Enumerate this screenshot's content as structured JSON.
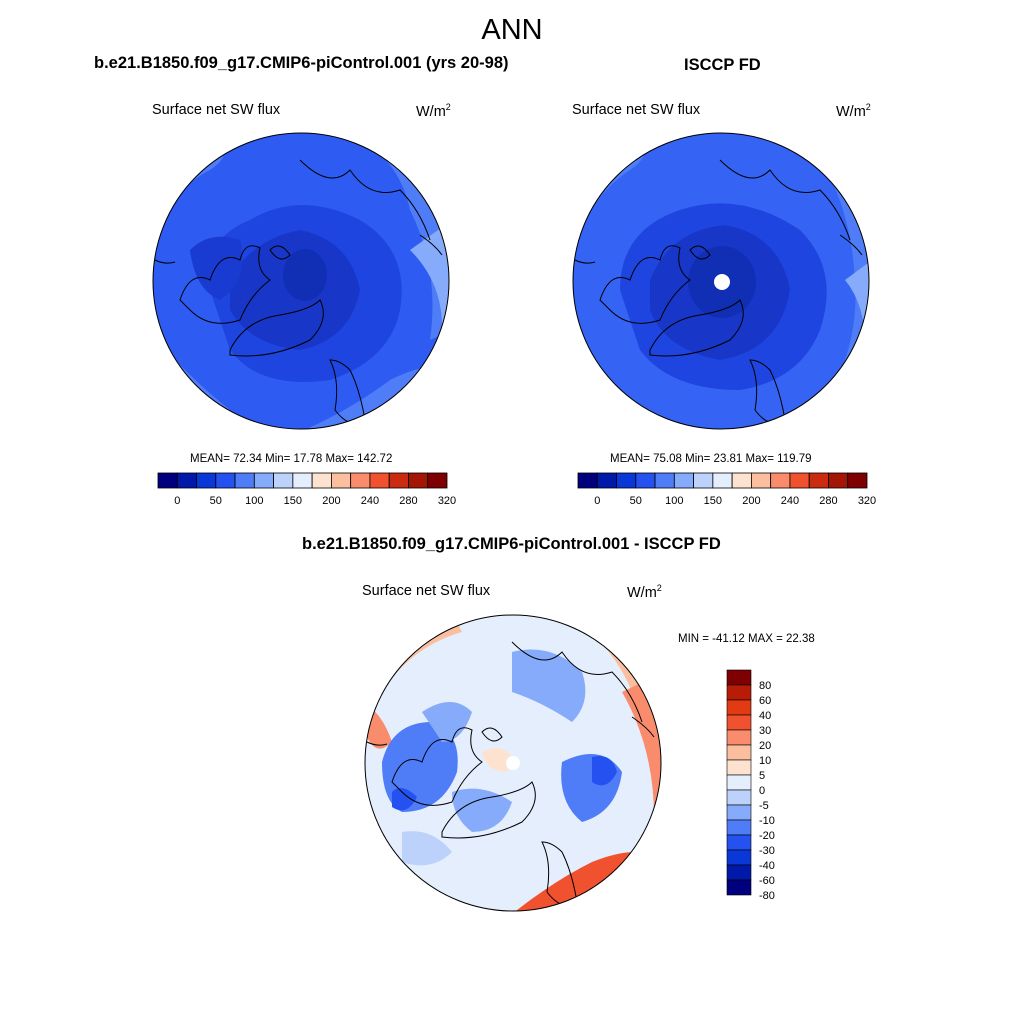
{
  "title": "ANN",
  "colors": {
    "abs_scale": [
      "#00007f",
      "#0019a8",
      "#0a37d8",
      "#2451f0",
      "#4f7cf7",
      "#86abfa",
      "#bcd2fb",
      "#e4eefc",
      "#fde3cf",
      "#fbbfa0",
      "#f88c6c",
      "#f0512e",
      "#cb2b0e",
      "#a31505",
      "#7f0000"
    ],
    "diff_scale": [
      "#00007f",
      "#0019a8",
      "#0a37d8",
      "#2451f0",
      "#4f7cf7",
      "#86abfa",
      "#bcd2fb",
      "#e4eefc",
      "#fde3cf",
      "#fbbfa0",
      "#f88c6c",
      "#f0512e",
      "#e23a12",
      "#b81c06",
      "#7f0000"
    ],
    "coastline": "#000000"
  },
  "panels": {
    "model": {
      "title": "b.e21.B1850.f09_g17.CMIP6-piControl.001 (yrs 20-98)",
      "variable": "Surface net SW flux",
      "units": "W/m",
      "units_exp": "2",
      "stats": "MEAN=  72.34  Min=  17.78  Max= 142.72"
    },
    "obs": {
      "title": "ISCCP FD",
      "variable": "Surface net SW flux",
      "units": "W/m",
      "units_exp": "2",
      "stats": "MEAN=  75.08  Min=  23.81  Max= 119.79"
    },
    "diff": {
      "title": "b.e21.B1850.f09_g17.CMIP6-piControl.001 - ISCCP FD",
      "variable": "Surface net SW flux",
      "units": "W/m",
      "units_exp": "2",
      "stats": "MIN = -41.12 MAX =  22.38"
    }
  },
  "colorbar_abs": {
    "labels": [
      "0",
      "50",
      "100",
      "150",
      "200",
      "240",
      "280",
      "320"
    ]
  },
  "colorbar_diff": {
    "labels": [
      "80",
      "60",
      "40",
      "30",
      "20",
      "10",
      "5",
      "0",
      "-5",
      "-10",
      "-20",
      "-30",
      "-40",
      "-60",
      "-80"
    ]
  }
}
